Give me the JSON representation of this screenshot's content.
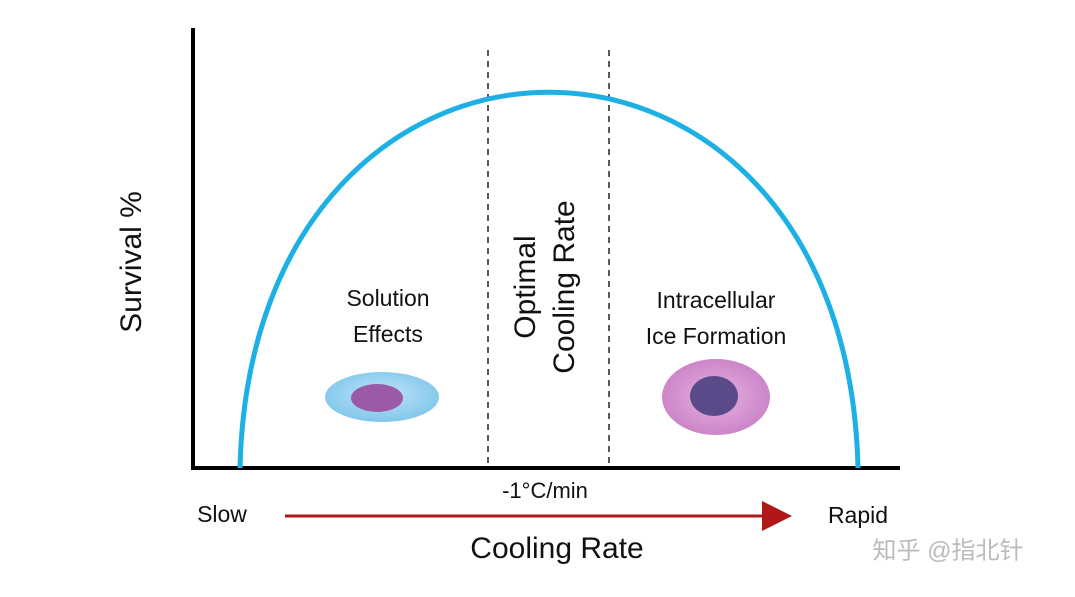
{
  "y_axis_label": "Survival %",
  "x_axis_label": "Cooling Rate",
  "x_start_label": "Slow",
  "x_end_label": "Rapid",
  "optimal_rate_label": "-1°C/min",
  "regions": [
    {
      "lines": [
        "Solution",
        "Effects"
      ]
    },
    {
      "lines": [
        "Optimal",
        "Cooling Rate"
      ]
    },
    {
      "lines": [
        "Intracellular",
        "Ice Formation"
      ]
    }
  ],
  "watermark": "知乎 @指北针"
}
